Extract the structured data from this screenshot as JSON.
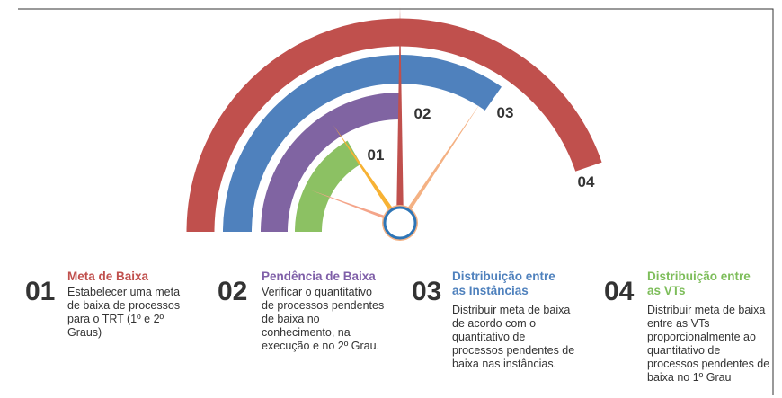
{
  "gauge": {
    "labels": [
      "01",
      "02",
      "03",
      "04"
    ]
  },
  "items": [
    {
      "number": "01",
      "title": "Meta de Baixa",
      "text": "Estabelecer uma meta de baixa de processos para o TRT (1º e 2º Graus)"
    },
    {
      "number": "02",
      "title": "Pendência de Baixa",
      "text": "Verificar o quantitativo de processos pendentes de baixa no conhecimento, na execução e no 2º Grau."
    },
    {
      "number": "03",
      "title": "Distribuição entre as Instâncias",
      "text": "Distribuir meta de baixa de acordo com o quantitativo de processos pendentes de baixa nas instâncias."
    },
    {
      "number": "04",
      "title": "Distribuição entre as VTs",
      "text": "Distribuir meta de baixa entre as VTs proporcionalmente ao quantitativo de processos pendentes de baixa no 1º Grau"
    }
  ]
}
